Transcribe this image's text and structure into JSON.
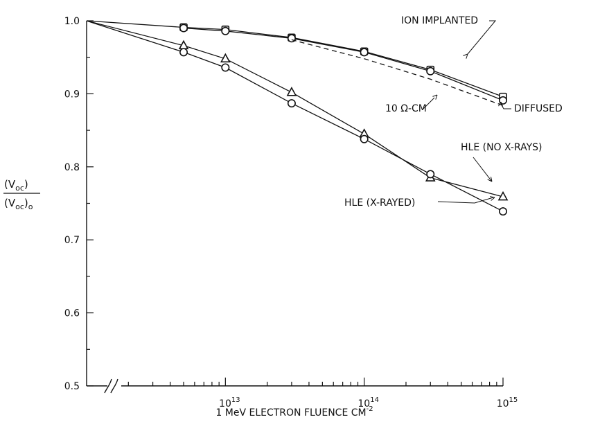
{
  "chart_data": {
    "type": "line",
    "x_scale": "log",
    "xlabel_parts": {
      "base": "1 MeV ELECTRON FLUENCE CM",
      "exp": "-2"
    },
    "ylabel_parts": {
      "num": "(V",
      "num_sub": "oc",
      "num_close": ")",
      "den": "(V",
      "den_sub": "oc",
      "den_close": ")",
      "den_tail": "o"
    },
    "xlim": [
      1000000000000.0,
      1000000000000000.0
    ],
    "ylim": [
      0.5,
      1.0
    ],
    "y_ticks": [
      "1.0",
      "0.9",
      "0.8",
      "0.7",
      "0.6",
      "0.5"
    ],
    "y_tick_values": [
      1.0,
      0.9,
      0.8,
      0.7,
      0.6,
      0.5
    ],
    "x_major_ticks": [
      {
        "base": "10",
        "exp": "13",
        "value": 10000000000000.0
      },
      {
        "base": "10",
        "exp": "14",
        "value": 100000000000000.0
      },
      {
        "base": "10",
        "exp": "15",
        "value": 1000000000000000.0
      }
    ],
    "axis_break": true,
    "grid": false,
    "series": [
      {
        "name": "ION IMPLANTED",
        "marker": "square",
        "line": "solid",
        "x": [
          1000000000000.0,
          5000000000000.0,
          10000000000000.0,
          30000000000000.0,
          100000000000000.0,
          300000000000000.0,
          1000000000000000.0
        ],
        "y": [
          1.0,
          0.991,
          0.988,
          0.977,
          0.958,
          0.933,
          0.896
        ]
      },
      {
        "name": "DIFFUSED",
        "marker": "circle",
        "line": "solid",
        "x": [
          5000000000000.0,
          10000000000000.0,
          30000000000000.0,
          100000000000000.0,
          300000000000000.0,
          1000000000000000.0
        ],
        "y": [
          0.99,
          0.986,
          0.976,
          0.957,
          0.931,
          0.891
        ]
      },
      {
        "name": "10 Ω-CM",
        "marker": "none",
        "line": "dashed",
        "x": [
          30000000000000.0,
          100000000000000.0,
          300000000000000.0,
          1000000000000000.0
        ],
        "y": [
          0.974,
          0.948,
          0.92,
          0.884
        ]
      },
      {
        "name": "HLE (NO X-RAYS)",
        "marker": "triangle",
        "line": "solid",
        "x": [
          1000000000000.0,
          5000000000000.0,
          10000000000000.0,
          30000000000000.0,
          100000000000000.0,
          300000000000000.0,
          1000000000000000.0
        ],
        "y": [
          1.0,
          0.966,
          0.948,
          0.902,
          0.845,
          0.785,
          0.759
        ]
      },
      {
        "name": "HLE (X-RAYED)",
        "marker": "circle",
        "line": "solid",
        "x": [
          1000000000000.0,
          5000000000000.0,
          10000000000000.0,
          30000000000000.0,
          100000000000000.0,
          300000000000000.0,
          1000000000000000.0
        ],
        "y": [
          1.0,
          0.957,
          0.936,
          0.887,
          0.838,
          0.79,
          0.739
        ]
      }
    ],
    "annotations": [
      {
        "text": "ION IMPLANTED",
        "series": "ION IMPLANTED",
        "position": "top-right"
      },
      {
        "text": "DIFFUSED",
        "series": "DIFFUSED",
        "position": "right"
      },
      {
        "text": "10 Ω-CM",
        "series": "10 Ω-CM",
        "position": "below-curve"
      },
      {
        "text": "HLE (NO X-RAYS)",
        "series": "HLE (NO X-RAYS)",
        "position": "above-curve"
      },
      {
        "text": "HLE (X-RAYED)",
        "series": "HLE (X-RAYED)",
        "position": "left-of-end"
      }
    ]
  }
}
